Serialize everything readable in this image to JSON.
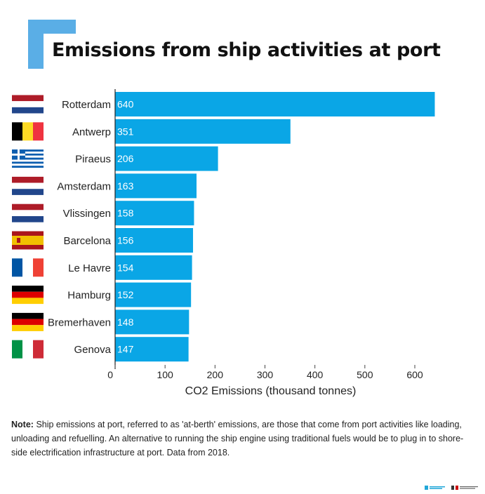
{
  "title": "Emissions from ship activities at port",
  "colors": {
    "bar": "#0aa6e6",
    "accent": "#5aaee6",
    "bar_label": "#ffffff"
  },
  "flags": [
    {
      "port": "Rotterdam",
      "country": "Netherlands",
      "icon": "netherlands-flag-icon"
    },
    {
      "port": "Antwerp",
      "country": "Belgium",
      "icon": "belgium-flag-icon"
    },
    {
      "port": "Piraeus",
      "country": "Greece",
      "icon": "greece-flag-icon"
    },
    {
      "port": "Amsterdam",
      "country": "Netherlands",
      "icon": "netherlands-flag-icon"
    },
    {
      "port": "Vlissingen",
      "country": "Netherlands",
      "icon": "netherlands-flag-icon"
    },
    {
      "port": "Barcelona",
      "country": "Spain",
      "icon": "spain-flag-icon"
    },
    {
      "port": "Le Havre",
      "country": "France",
      "icon": "france-flag-icon"
    },
    {
      "port": "Hamburg",
      "country": "Germany",
      "icon": "germany-flag-icon"
    },
    {
      "port": "Bremerhaven",
      "country": "Germany",
      "icon": "germany-flag-icon"
    },
    {
      "port": "Genova",
      "country": "Italy",
      "icon": "italy-flag-icon"
    }
  ],
  "chart_data": {
    "type": "bar",
    "orientation": "horizontal",
    "categories": [
      "Rotterdam",
      "Antwerp",
      "Piraeus",
      "Amsterdam",
      "Vlissingen",
      "Barcelona",
      "Le Havre",
      "Hamburg",
      "Bremerhaven",
      "Genova"
    ],
    "values": [
      640,
      351,
      206,
      163,
      158,
      156,
      154,
      152,
      148,
      147
    ],
    "xlabel": "CO2 Emissions (thousand tonnes)",
    "ylabel": "",
    "xlim": [
      0,
      650
    ],
    "xticks": [
      0,
      100,
      200,
      300,
      400,
      500,
      600
    ],
    "data_labels": true,
    "grid": false
  },
  "note": {
    "label": "Note:",
    "text": "Ship emissions at port, referred to as 'at-berth' emissions, are  those that come from port activities like loading, unloading and refuelling. An alternative to running the ship engine using traditional fuels would be to plug in to shore-side electrification infrastructure at port. Data from 2018."
  },
  "footer_logos": [
    "transport-environment-logo",
    "partner-logo"
  ]
}
